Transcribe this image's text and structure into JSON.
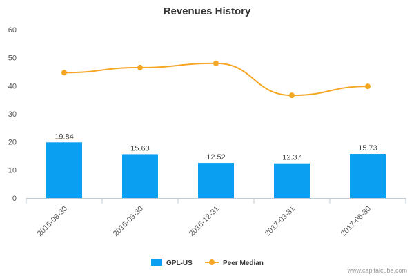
{
  "chart_data": {
    "type": "bar",
    "title": "Revenues History",
    "categories": [
      "2016-06-30",
      "2016-09-30",
      "2016-12-31",
      "2017-03-31",
      "2017-06-30"
    ],
    "series": [
      {
        "name": "GPL-US",
        "type": "bar",
        "color": "#0a9ff0",
        "values": [
          19.84,
          15.63,
          12.52,
          12.37,
          15.73
        ],
        "labels": [
          "19.84",
          "15.63",
          "12.52",
          "12.37",
          "15.73"
        ]
      },
      {
        "name": "Peer Median",
        "type": "line",
        "color": "#f5a623",
        "values": [
          44.7,
          46.5,
          48.0,
          36.6,
          39.8
        ]
      }
    ],
    "ylim": [
      0,
      60
    ],
    "yticks": [
      0,
      10,
      20,
      30,
      40,
      50,
      60
    ],
    "yticks_labels": [
      "0",
      "10",
      "20",
      "30",
      "40",
      "50",
      "60"
    ],
    "grid": false,
    "legend_position": "bottom"
  },
  "credit": "www.capitalcube.com"
}
